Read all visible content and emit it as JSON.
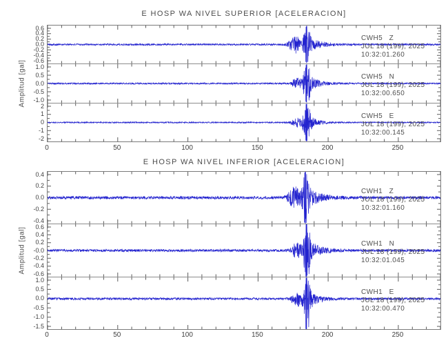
{
  "window": {
    "background": "#ffffff"
  },
  "colors": {
    "trace": "#2424cf",
    "frame": "#7a7a7a",
    "divider": "#8c8c8c",
    "tick": "#5a5a5a",
    "text": "#4b4b4b"
  },
  "chart_data": [
    {
      "type": "line",
      "chart_kind": "seismogram",
      "title": "E HOSP WA NIVEL SUPERIOR [ACELERACION]",
      "ylabel": "Amplitud [gal]",
      "xlabel": "",
      "xlim": [
        0,
        280
      ],
      "x_tick_labels": [
        "0",
        "50",
        "100",
        "150",
        "200",
        "250"
      ],
      "x_tick_values": [
        0,
        50,
        100,
        150,
        200,
        250
      ],
      "x_minor_step": 10,
      "grid": "off",
      "traces": [
        {
          "station": "CWH5",
          "component": "Z",
          "date": "JUL 18 (199), 2025",
          "time": "10:32:01.260",
          "y_tick_labels": [
            "0.6",
            "0.4",
            "0.2",
            "0.0",
            "-0.2",
            "-0.4",
            "-0.6"
          ],
          "zero_index": 3,
          "signal": {
            "noise": 0.05,
            "pre_t": 176.5,
            "pre_amp": 0.5,
            "peak_t": 184.5,
            "peak_amp": 0.95,
            "coda_amp": 0.5,
            "coda_tau": 8,
            "seed": 101
          }
        },
        {
          "station": "CWH5",
          "component": "N",
          "date": "JUL 18 (199), 2025",
          "time": "10:32:00.650",
          "y_tick_labels": [
            "1.0",
            "0.5",
            "0.0",
            "-0.5",
            "-1.0"
          ],
          "zero_index": 2,
          "signal": {
            "noise": 0.04,
            "pre_t": 178,
            "pre_amp": 0.3,
            "peak_t": 184.5,
            "peak_amp": 0.97,
            "coda_amp": 0.55,
            "coda_tau": 7,
            "seed": 102
          }
        },
        {
          "station": "CWH5",
          "component": "E",
          "date": "JUL 18 (199), 2025",
          "time": "10:32:00.145",
          "y_tick_labels": [
            "2",
            "1",
            "0",
            "-1",
            "-2"
          ],
          "zero_index": 2,
          "signal": {
            "noise": 0.035,
            "pre_t": 178,
            "pre_amp": 0.25,
            "peak_t": 184.5,
            "peak_amp": 1.0,
            "coda_amp": 0.5,
            "coda_tau": 6,
            "seed": 103
          }
        }
      ]
    },
    {
      "type": "line",
      "chart_kind": "seismogram",
      "title": "E HOSP WA NIVEL INFERIOR [ACELERACION]",
      "ylabel": "Amplitud [gal]",
      "xlabel": "",
      "xlim": [
        0,
        280
      ],
      "x_tick_labels": [
        "0",
        "50",
        "100",
        "150",
        "200",
        "250"
      ],
      "x_tick_values": [
        0,
        50,
        100,
        150,
        200,
        250
      ],
      "x_minor_step": 10,
      "grid": "off",
      "traces": [
        {
          "station": "CWH1",
          "component": "Z",
          "date": "JUL 18 (199), 2025",
          "time": "10:32:01.160",
          "y_tick_labels": [
            "0.4",
            "0.2",
            "0.0",
            "-0.2",
            "-0.4"
          ],
          "zero_index": 2,
          "signal": {
            "noise": 0.06,
            "pre_t": 176,
            "pre_amp": 0.45,
            "peak_t": 183.5,
            "peak_amp": 0.95,
            "coda_amp": 0.5,
            "coda_tau": 8,
            "seed": 201
          }
        },
        {
          "station": "CWH1",
          "component": "N",
          "date": "JUL 18 (199), 2025",
          "time": "10:32:01.045",
          "y_tick_labels": [
            "0.6",
            "0.4",
            "0.2",
            "-0.0",
            "-0.2",
            "-0.4",
            "-0.6"
          ],
          "zero_index": 3,
          "signal": {
            "noise": 0.05,
            "pre_t": 178,
            "pre_amp": 0.3,
            "peak_t": 184.5,
            "peak_amp": 1.0,
            "coda_amp": 0.55,
            "coda_tau": 7,
            "seed": 202
          }
        },
        {
          "station": "CWH1",
          "component": "E",
          "date": "JUL 18 (199), 2025",
          "time": "10:32:00.470",
          "y_tick_labels": [
            "1.0",
            "0.5",
            "0.0",
            "-0.5",
            "-1.0",
            "-1.5"
          ],
          "zero_index": 2,
          "signal": {
            "noise": 0.045,
            "pre_t": 178,
            "pre_amp": 0.25,
            "peak_t": 184.5,
            "peak_amp": 1.0,
            "coda_amp": 0.45,
            "coda_tau": 6,
            "seed": 203
          }
        }
      ]
    }
  ]
}
